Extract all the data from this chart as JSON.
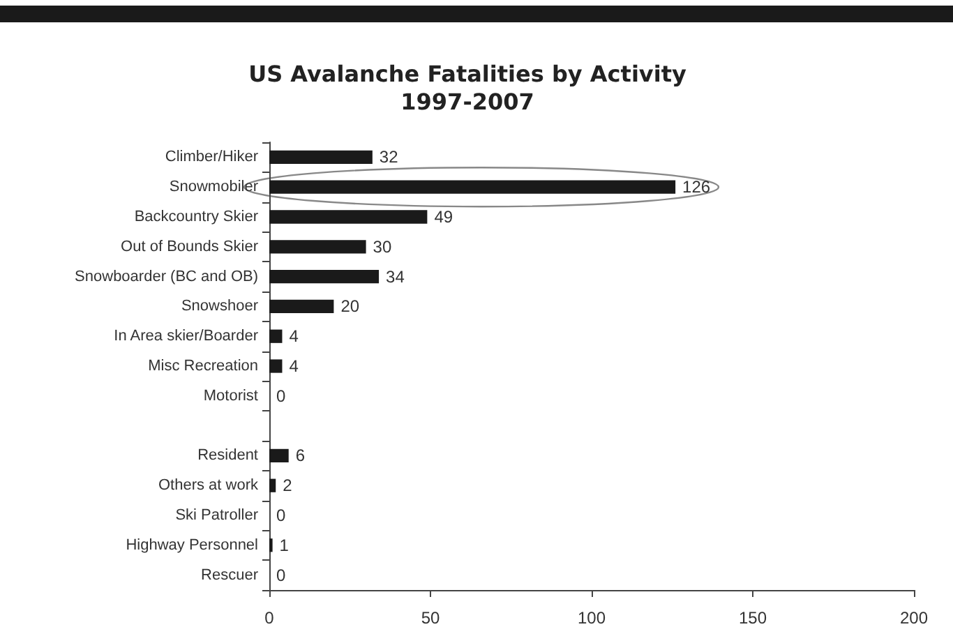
{
  "chart_data": {
    "type": "bar",
    "orientation": "horizontal",
    "title": "US Avalanche Fatalities by Activity\n1997-2007",
    "categories": [
      "Climber/Hiker",
      "Snowmobiler",
      "Backcountry Skier",
      "Out of Bounds Skier",
      "Snowboarder (BC and OB)",
      "Snowshoer",
      "In Area skier/Boarder",
      "Misc Recreation",
      "Motorist",
      null,
      "Resident",
      "Others at work",
      "Ski Patroller",
      "Highway Personnel",
      "Rescuer"
    ],
    "values": [
      32,
      126,
      49,
      30,
      34,
      20,
      4,
      4,
      0,
      null,
      6,
      2,
      0,
      1,
      0
    ],
    "color": "#1a1a1a",
    "xlim": [
      0,
      200
    ],
    "xticks": [
      0,
      50,
      100,
      150,
      200
    ],
    "data_labels": true,
    "grid": false
  }
}
